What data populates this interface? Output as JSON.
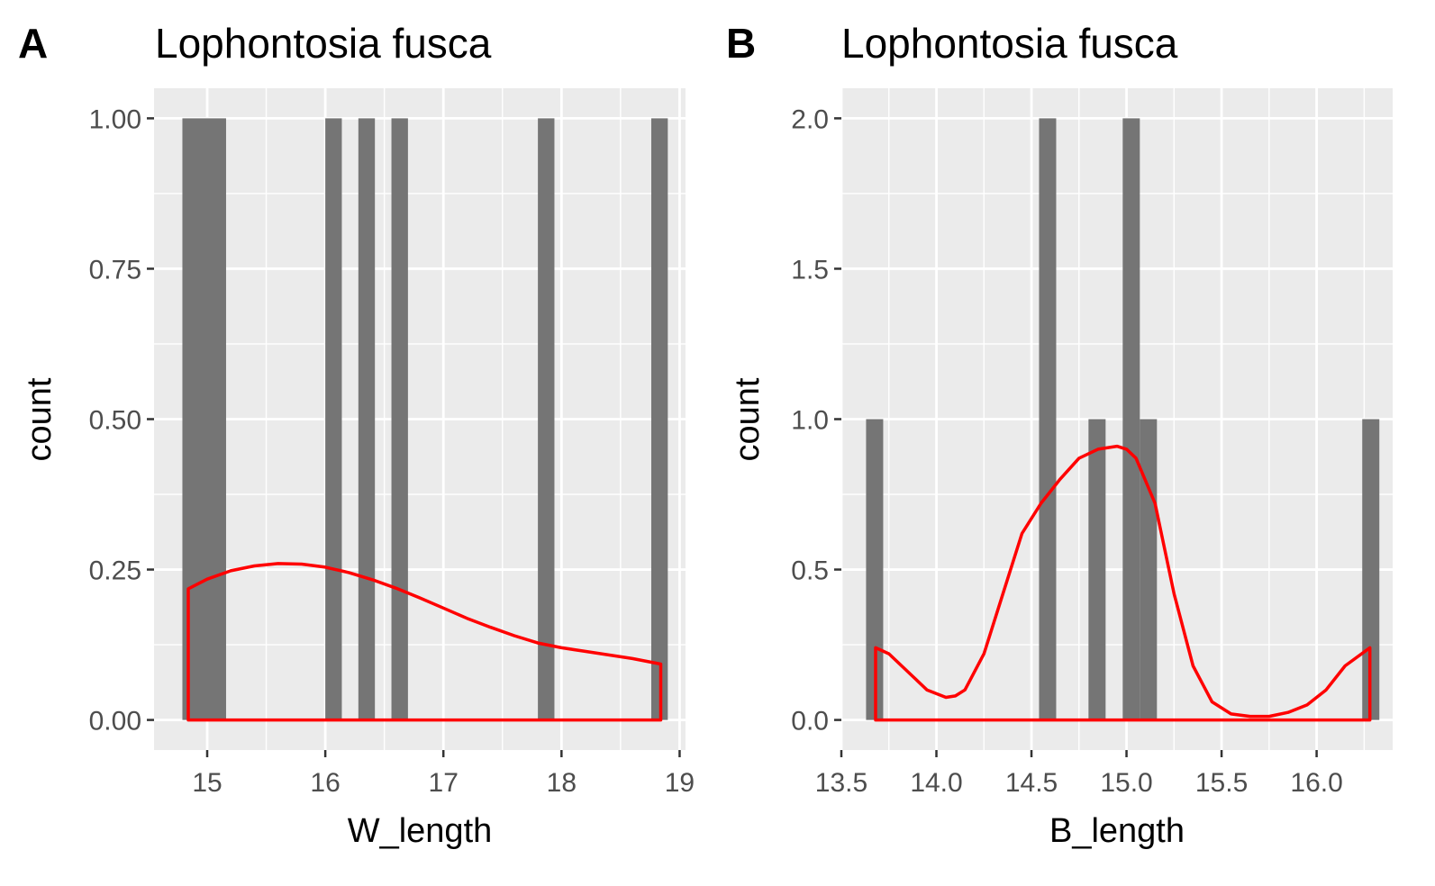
{
  "chart_data": [
    {
      "type": "bar",
      "panel_tag": "A",
      "title": "Lophontosia fusca",
      "xlabel": "W_length",
      "ylabel": "count",
      "xlim": [
        14.55,
        19.05
      ],
      "ylim": [
        -0.05,
        1.05
      ],
      "x_ticks": [
        15,
        16,
        17,
        18,
        19
      ],
      "x_tick_labels": [
        "15",
        "16",
        "17",
        "18",
        "19"
      ],
      "y_ticks": [
        0,
        0.25,
        0.5,
        0.75,
        1
      ],
      "y_tick_labels": [
        "0.00",
        "0.25",
        "0.50",
        "0.75",
        "1.00"
      ],
      "x_minor_ticks": [
        14.5,
        15.5,
        16.5,
        17.5,
        18.5
      ],
      "y_minor_ticks": [
        0.125,
        0.375,
        0.625,
        0.875
      ],
      "grid": true,
      "bar_color": "#757575",
      "bars": [
        {
          "xmin": 14.79,
          "xmax": 15.16,
          "count": 1
        },
        {
          "xmin": 16.0,
          "xmax": 16.14,
          "count": 1
        },
        {
          "xmin": 16.28,
          "xmax": 16.42,
          "count": 1
        },
        {
          "xmin": 16.56,
          "xmax": 16.7,
          "count": 1
        },
        {
          "xmin": 17.8,
          "xmax": 17.94,
          "count": 1
        },
        {
          "xmin": 18.76,
          "xmax": 18.9,
          "count": 1
        }
      ],
      "density": {
        "color": "#ff0000",
        "x": [
          14.84,
          15.0,
          15.2,
          15.4,
          15.6,
          15.8,
          16.0,
          16.2,
          16.4,
          16.6,
          16.8,
          17.0,
          17.2,
          17.4,
          17.6,
          17.8,
          18.0,
          18.2,
          18.4,
          18.6,
          18.84
        ],
        "y": [
          0.218,
          0.234,
          0.248,
          0.256,
          0.26,
          0.259,
          0.254,
          0.245,
          0.233,
          0.219,
          0.203,
          0.186,
          0.169,
          0.154,
          0.14,
          0.128,
          0.12,
          0.114,
          0.108,
          0.102,
          0.093
        ]
      }
    },
    {
      "type": "bar",
      "panel_tag": "B",
      "title": "Lophontosia fusca",
      "xlabel": "B_length",
      "ylabel": "count",
      "xlim": [
        13.5,
        16.4
      ],
      "ylim": [
        -0.1,
        2.1
      ],
      "x_ticks": [
        13.5,
        14.0,
        14.5,
        15.0,
        15.5,
        16.0
      ],
      "x_tick_labels": [
        "13.5",
        "14.0",
        "14.5",
        "15.0",
        "15.5",
        "16.0"
      ],
      "y_ticks": [
        0,
        0.5,
        1,
        1.5,
        2
      ],
      "y_tick_labels": [
        "0.0",
        "0.5",
        "1.0",
        "1.5",
        "2.0"
      ],
      "x_minor_ticks": [
        13.75,
        14.25,
        14.75,
        15.25,
        15.75,
        16.25
      ],
      "y_minor_ticks": [
        0.25,
        0.75,
        1.25,
        1.75
      ],
      "grid": true,
      "bar_color": "#757575",
      "bars": [
        {
          "xmin": 13.63,
          "xmax": 13.72,
          "count": 1
        },
        {
          "xmin": 14.54,
          "xmax": 14.63,
          "count": 2
        },
        {
          "xmin": 14.8,
          "xmax": 14.89,
          "count": 1
        },
        {
          "xmin": 14.98,
          "xmax": 15.07,
          "count": 2
        },
        {
          "xmin": 15.07,
          "xmax": 15.16,
          "count": 1
        },
        {
          "xmin": 16.24,
          "xmax": 16.33,
          "count": 1
        }
      ],
      "density": {
        "color": "#ff0000",
        "x": [
          13.68,
          13.75,
          13.85,
          13.95,
          14.05,
          14.1,
          14.15,
          14.25,
          14.35,
          14.45,
          14.55,
          14.65,
          14.75,
          14.85,
          14.95,
          15.0,
          15.05,
          15.15,
          15.25,
          15.35,
          15.45,
          15.55,
          15.65,
          15.75,
          15.85,
          15.95,
          16.05,
          16.15,
          16.28
        ],
        "y": [
          0.24,
          0.22,
          0.16,
          0.1,
          0.075,
          0.08,
          0.1,
          0.22,
          0.42,
          0.62,
          0.72,
          0.8,
          0.87,
          0.9,
          0.91,
          0.9,
          0.87,
          0.72,
          0.42,
          0.18,
          0.06,
          0.02,
          0.012,
          0.012,
          0.025,
          0.05,
          0.1,
          0.18,
          0.24
        ]
      }
    }
  ]
}
